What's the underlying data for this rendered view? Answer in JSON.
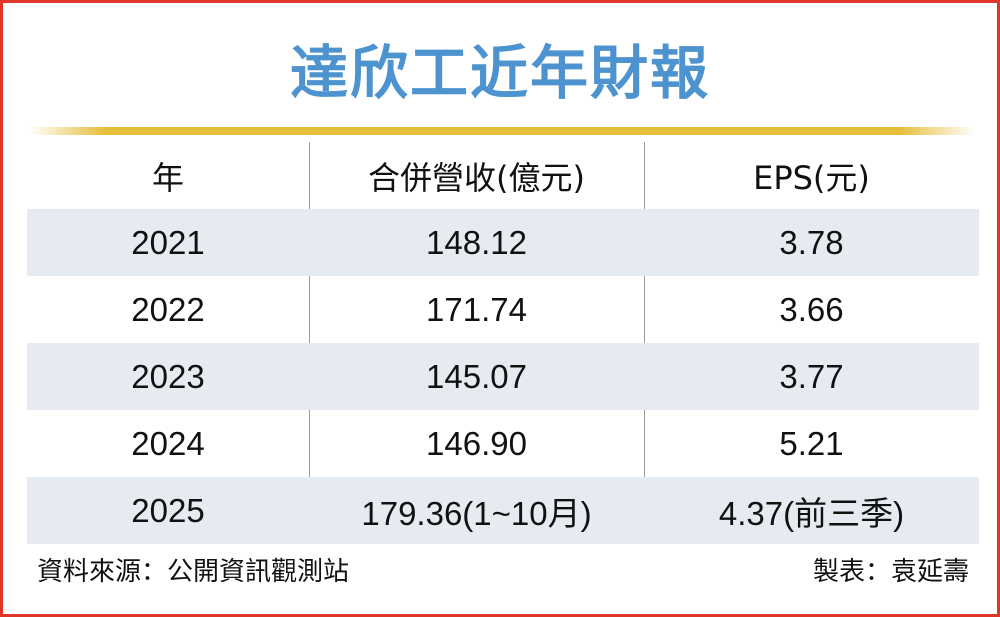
{
  "title": "達欣工近年財報",
  "colors": {
    "title": "#4c93cf",
    "border": "#e0352b",
    "rule": "#e6bf3a",
    "shade": "#e6eaf1"
  },
  "table": {
    "headers": [
      "年",
      "合併營收(億元)",
      "EPS(元)"
    ],
    "rows": [
      [
        "2021",
        "148.12",
        "3.78"
      ],
      [
        "2022",
        "171.74",
        "3.66"
      ],
      [
        "2023",
        "145.07",
        "3.77"
      ],
      [
        "2024",
        "146.90",
        "5.21"
      ],
      [
        "2025",
        "179.36(1~10月)",
        "4.37(前三季)"
      ]
    ]
  },
  "footer": {
    "source": "資料來源：公開資訊觀測站",
    "maker": "製表：袁延壽"
  }
}
